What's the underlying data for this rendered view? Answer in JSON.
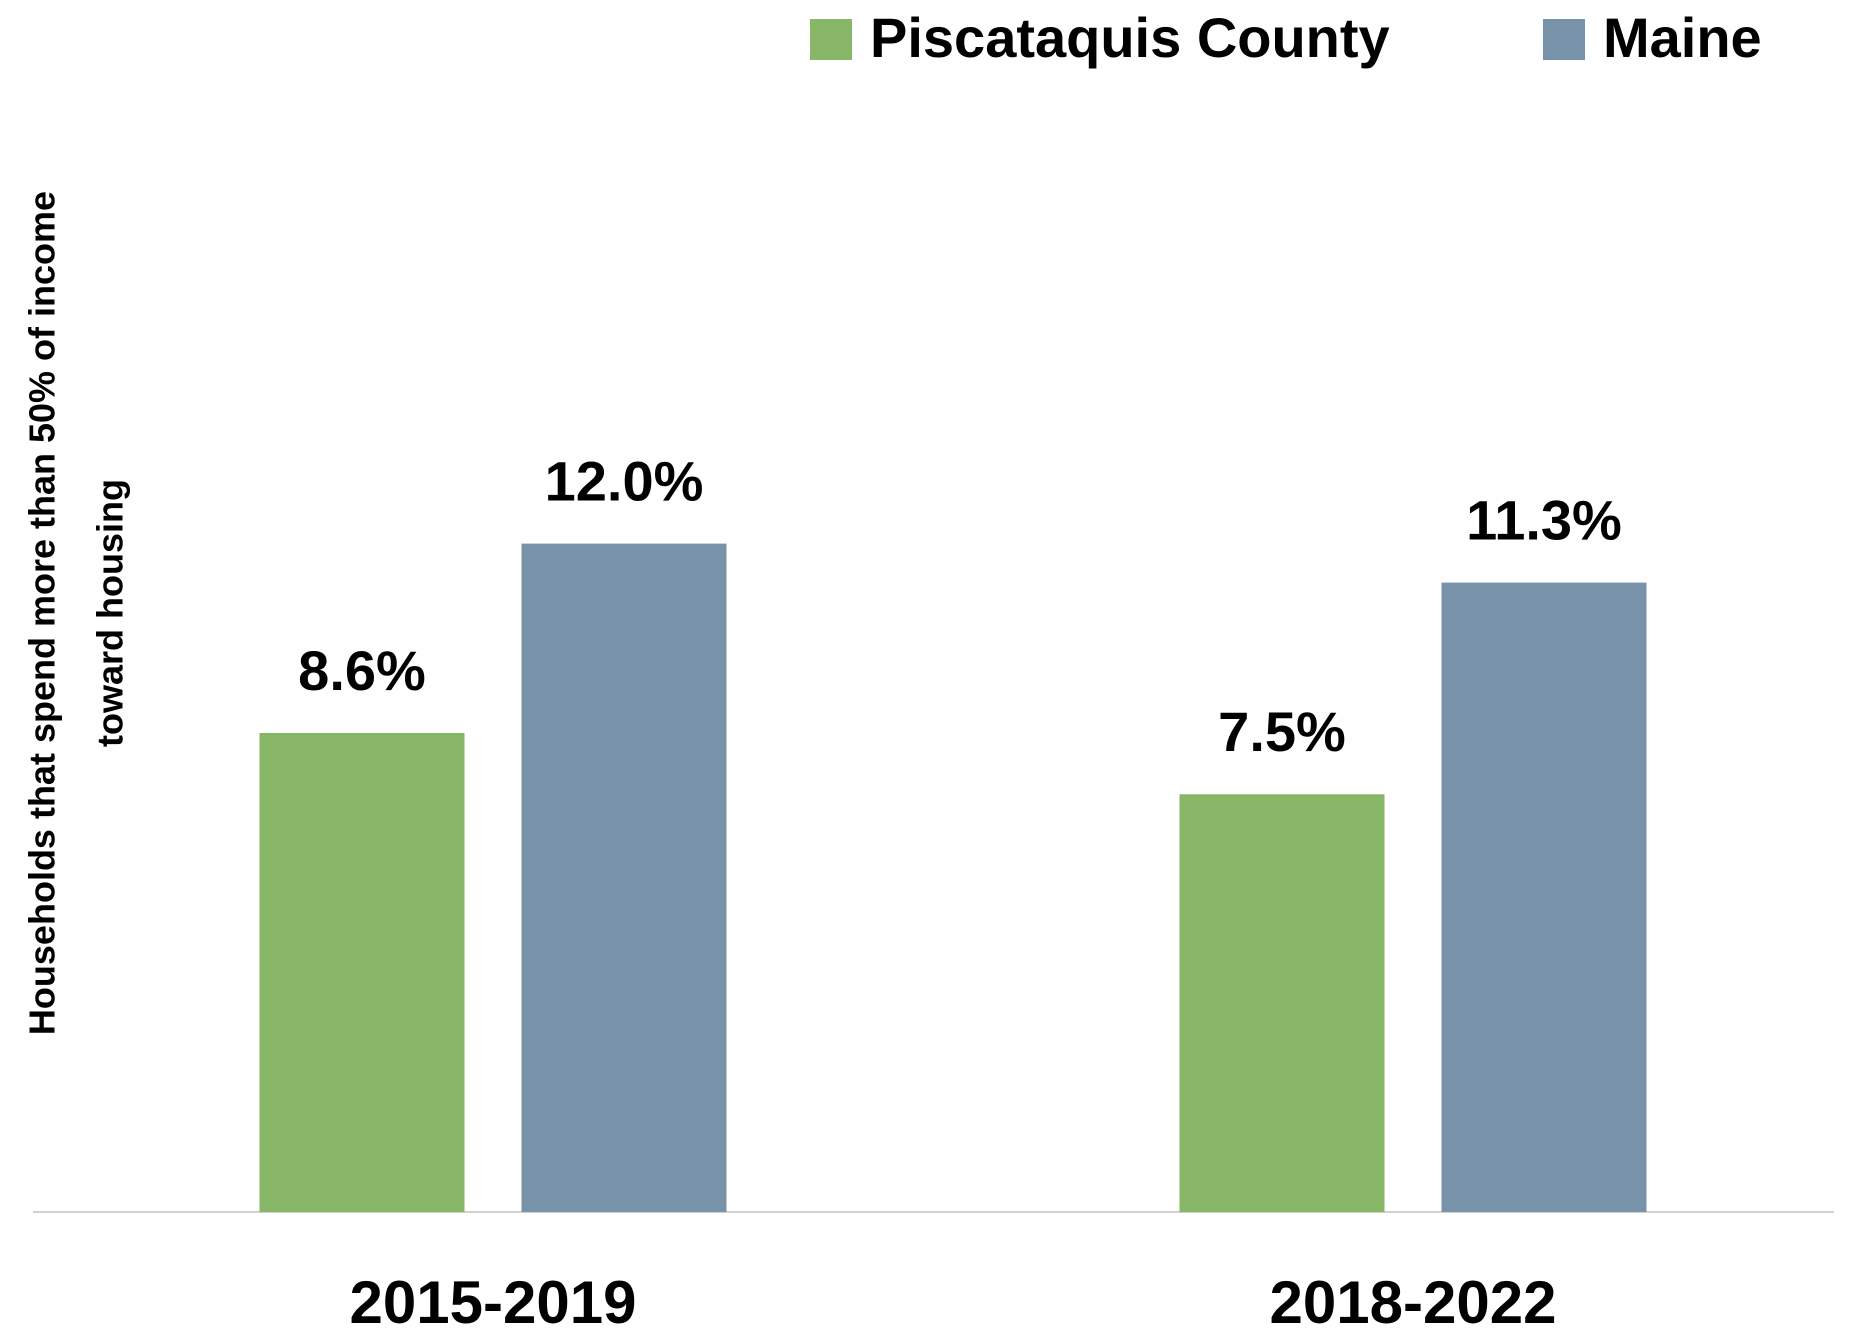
{
  "chart_data": {
    "type": "bar",
    "y_label": [
      "Households that spend more than 50% of income",
      "toward housing"
    ],
    "categories": [
      "2015-2019",
      "2018-2022"
    ],
    "series": [
      {
        "name": "Piscataquis County",
        "color": "#86b666",
        "values": [
          8.6,
          7.5
        ],
        "value_labels": [
          "8.6%",
          "7.5%"
        ]
      },
      {
        "name": "Maine",
        "color": "#7892aa",
        "values": [
          12.0,
          11.3
        ],
        "value_labels": [
          "12.0%",
          "11.3%"
        ]
      }
    ],
    "ylim": [
      0,
      20
    ],
    "legend": "top-right"
  }
}
